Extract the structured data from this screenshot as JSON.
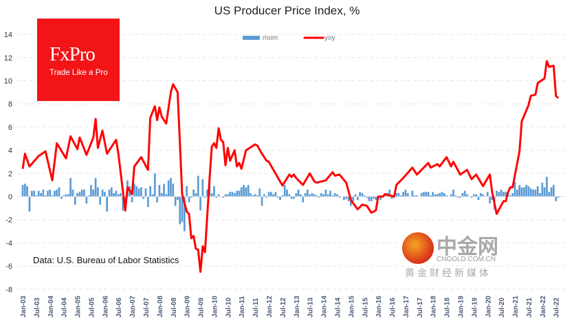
{
  "chart_data": {
    "type": "bar+line",
    "title": "US Producer Price Index, %",
    "source_note": "Data: U.S. Bureau of Labor Statistics",
    "ylim": [
      -8,
      14
    ],
    "yticks": [
      -8,
      -6,
      -4,
      -2,
      0,
      2,
      4,
      6,
      8,
      10,
      12,
      14
    ],
    "grid": true,
    "legend": "top-center",
    "start_month": "2003-01",
    "xtick_labels": [
      "Jan-03",
      "Jul-03",
      "Jan-04",
      "Jul-04",
      "Jan-05",
      "Jul-05",
      "Jan-06",
      "Jul-06",
      "Jan-07",
      "Jul-07",
      "Jan-08",
      "Jul-08",
      "Jan-09",
      "Jul-09",
      "Jan-10",
      "Jul-10",
      "Jan-11",
      "Jul-11",
      "Jan-12",
      "Jul-12",
      "Jan-13",
      "Jul-13",
      "Jan-14",
      "Jul-14",
      "Jan-15",
      "Jul-15",
      "Jan-16",
      "Jul-16",
      "Jan-17",
      "Jul-17",
      "Jan-18",
      "Jul-18",
      "Jan-19",
      "Jul-19",
      "Jan-20",
      "Jul-20",
      "Jan-21",
      "Jul-21",
      "Jan-22",
      "Jul-22"
    ],
    "series": [
      {
        "name": "mom",
        "type": "bar",
        "color": "#5b9bd5",
        "values": [
          1.0,
          1.1,
          0.9,
          -1.3,
          0.5,
          0.5,
          0.1,
          0.5,
          0.3,
          0.6,
          0.1,
          0.5,
          0.6,
          0.1,
          0.5,
          0.6,
          0.8,
          -0.2,
          0.1,
          0.2,
          0.2,
          1.6,
          0.6,
          -0.7,
          0.3,
          0.4,
          0.6,
          0.6,
          -0.6,
          0.1,
          1.0,
          0.6,
          1.6,
          0.8,
          -0.7,
          0.6,
          0.4,
          -1.3,
          0.6,
          0.8,
          0.3,
          0.5,
          0.2,
          0.3,
          -1.2,
          -1.3,
          1.4,
          0.9,
          -0.5,
          1.1,
          0.9,
          0.7,
          0.8,
          -0.2,
          0.7,
          -0.9,
          0.9,
          0.2,
          2.0,
          -0.5,
          1.0,
          0.3,
          1.1,
          0.2,
          1.4,
          1.6,
          1.1,
          -0.8,
          -0.3,
          -2.4,
          -2.2,
          -3.0,
          0.9,
          -0.5,
          -0.1,
          0.6,
          0.3,
          1.8,
          -1.2,
          1.5,
          -0.1,
          0.6,
          1.6,
          0.3,
          0.9,
          -0.1,
          0.2,
          0.0,
          -0.1,
          0.2,
          0.2,
          0.4,
          0.4,
          0.3,
          0.5,
          0.5,
          0.8,
          1.0,
          0.8,
          1.0,
          0.3,
          0.1,
          0.2,
          0.1,
          0.7,
          -0.8,
          0.2,
          -0.1,
          0.4,
          0.4,
          0.2,
          0.4,
          -0.1,
          -0.3,
          0.1,
          1.0,
          0.6,
          0.2,
          -0.2,
          -0.2,
          0.3,
          0.6,
          0.2,
          -0.5,
          0.3,
          0.6,
          0.2,
          0.3,
          0.2,
          0.1,
          -0.1,
          0.3,
          0.2,
          0.6,
          0.2,
          0.5,
          0.1,
          0.3,
          0.2,
          -0.1,
          0.0,
          -0.3,
          -0.2,
          -0.4,
          -0.8,
          -0.4,
          0.2,
          -0.3,
          0.4,
          0.3,
          0.1,
          -0.1,
          -0.4,
          -0.4,
          -0.2,
          -0.3,
          -0.1,
          -0.3,
          -0.1,
          0.3,
          0.3,
          0.6,
          -0.2,
          -0.1,
          0.3,
          0.3,
          0.1,
          0.4,
          0.6,
          0.3,
          0.0,
          0.5,
          0.1,
          0.1,
          0.0,
          0.3,
          0.4,
          0.4,
          0.4,
          0.1,
          0.4,
          0.2,
          0.2,
          0.3,
          0.4,
          0.3,
          0.1,
          0.0,
          0.2,
          0.6,
          0.1,
          -0.1,
          -0.1,
          0.3,
          0.5,
          0.2,
          0.0,
          -0.1,
          0.2,
          0.2,
          -0.3,
          0.3,
          0.2,
          0.0,
          0.4,
          -0.6,
          -0.3,
          -1.1,
          0.5,
          0.4,
          0.6,
          0.4,
          0.4,
          0.4,
          0.1,
          0.3,
          1.3,
          0.6,
          1.0,
          0.8,
          0.8,
          1.0,
          0.9,
          0.7,
          0.6,
          0.6,
          0.9,
          0.3,
          1.2,
          0.8,
          1.7,
          0.4,
          0.8,
          1.0,
          -0.4,
          -0.1
        ]
      },
      {
        "name": "yoy",
        "type": "line",
        "color": "#ff0000",
        "points": [
          [
            "2003-01",
            2.4
          ],
          [
            "2003-02",
            3.7
          ],
          [
            "2003-04",
            2.6
          ],
          [
            "2003-08",
            3.5
          ],
          [
            "2003-11",
            3.9
          ],
          [
            "2004-02",
            1.4
          ],
          [
            "2004-04",
            4.6
          ],
          [
            "2004-08",
            3.3
          ],
          [
            "2004-10",
            5.2
          ],
          [
            "2005-01",
            4.1
          ],
          [
            "2005-02",
            5.1
          ],
          [
            "2005-05",
            3.6
          ],
          [
            "2005-08",
            5.1
          ],
          [
            "2005-09",
            6.7
          ],
          [
            "2005-10",
            4.2
          ],
          [
            "2005-12",
            5.7
          ],
          [
            "2006-02",
            3.7
          ],
          [
            "2006-06",
            4.9
          ],
          [
            "2006-07",
            3.7
          ],
          [
            "2006-10",
            -1.2
          ],
          [
            "2006-11",
            0.8
          ],
          [
            "2007-01",
            0.2
          ],
          [
            "2007-02",
            2.6
          ],
          [
            "2007-05",
            3.4
          ],
          [
            "2007-08",
            2.3
          ],
          [
            "2007-09",
            6.8
          ],
          [
            "2007-11",
            7.8
          ],
          [
            "2007-12",
            6.6
          ],
          [
            "2008-01",
            7.7
          ],
          [
            "2008-02",
            6.9
          ],
          [
            "2008-04",
            6.3
          ],
          [
            "2008-06",
            9.0
          ],
          [
            "2008-07",
            9.7
          ],
          [
            "2008-09",
            9.0
          ],
          [
            "2008-11",
            0.2
          ],
          [
            "2009-01",
            -1.3
          ],
          [
            "2009-02",
            -1.5
          ],
          [
            "2009-03",
            -3.6
          ],
          [
            "2009-04",
            -3.4
          ],
          [
            "2009-05",
            -4.5
          ],
          [
            "2009-06",
            -4.6
          ],
          [
            "2009-07",
            -6.5
          ],
          [
            "2009-08",
            -4.3
          ],
          [
            "2009-09",
            -4.8
          ],
          [
            "2009-11",
            1.5
          ],
          [
            "2009-12",
            4.3
          ],
          [
            "2010-01",
            4.6
          ],
          [
            "2010-02",
            4.2
          ],
          [
            "2010-03",
            5.9
          ],
          [
            "2010-04",
            4.9
          ],
          [
            "2010-05",
            4.7
          ],
          [
            "2010-06",
            2.7
          ],
          [
            "2010-07",
            4.2
          ],
          [
            "2010-08",
            3.1
          ],
          [
            "2010-10",
            4.0
          ],
          [
            "2010-11",
            2.6
          ],
          [
            "2010-12",
            2.9
          ],
          [
            "2011-01",
            2.4
          ],
          [
            "2011-03",
            4.0
          ],
          [
            "2011-07",
            4.5
          ],
          [
            "2011-08",
            4.4
          ],
          [
            "2011-10",
            3.7
          ],
          [
            "2011-12",
            3.1
          ],
          [
            "2012-01",
            3.0
          ],
          [
            "2012-07",
            0.95
          ],
          [
            "2012-10",
            1.9
          ],
          [
            "2012-11",
            1.7
          ],
          [
            "2012-12",
            1.9
          ],
          [
            "2013-01",
            1.6
          ],
          [
            "2013-04",
            1.0
          ],
          [
            "2013-07",
            2.0
          ],
          [
            "2013-09",
            1.3
          ],
          [
            "2013-10",
            1.2
          ],
          [
            "2014-02",
            1.4
          ],
          [
            "2014-05",
            2.1
          ],
          [
            "2014-06",
            1.8
          ],
          [
            "2014-08",
            1.9
          ],
          [
            "2014-11",
            1.2
          ],
          [
            "2015-01",
            -0.3
          ],
          [
            "2015-04",
            -1.1
          ],
          [
            "2015-06",
            -0.7
          ],
          [
            "2015-08",
            -0.8
          ],
          [
            "2015-10",
            -1.4
          ],
          [
            "2015-12",
            -1.2
          ],
          [
            "2016-01",
            0.0
          ],
          [
            "2016-03",
            0.0
          ],
          [
            "2016-04",
            0.2
          ],
          [
            "2016-08",
            0.0
          ],
          [
            "2016-09",
            1.0
          ],
          [
            "2016-12",
            1.6
          ],
          [
            "2017-04",
            2.5
          ],
          [
            "2017-06",
            1.9
          ],
          [
            "2017-11",
            2.9
          ],
          [
            "2017-12",
            2.5
          ],
          [
            "2018-03",
            2.8
          ],
          [
            "2018-04",
            2.6
          ],
          [
            "2018-07",
            3.4
          ],
          [
            "2018-09",
            2.6
          ],
          [
            "2018-10",
            3.0
          ],
          [
            "2019-01",
            1.9
          ],
          [
            "2019-04",
            2.3
          ],
          [
            "2019-06",
            1.5
          ],
          [
            "2019-08",
            1.9
          ],
          [
            "2019-11",
            0.9
          ],
          [
            "2020-02",
            1.9
          ],
          [
            "2020-03",
            0.4
          ],
          [
            "2020-05",
            -1.5
          ],
          [
            "2020-08",
            -0.4
          ],
          [
            "2020-09",
            -0.4
          ],
          [
            "2020-10",
            0.4
          ],
          [
            "2020-11",
            0.8
          ],
          [
            "2020-12",
            0.8
          ],
          [
            "2021-03",
            3.9
          ],
          [
            "2021-04",
            6.5
          ],
          [
            "2021-07",
            7.9
          ],
          [
            "2021-08",
            8.7
          ],
          [
            "2021-10",
            8.8
          ],
          [
            "2021-11",
            9.8
          ],
          [
            "2022-02",
            10.2
          ],
          [
            "2022-03",
            11.7
          ],
          [
            "2022-04",
            11.2
          ],
          [
            "2022-06",
            11.3
          ],
          [
            "2022-07",
            8.7
          ],
          [
            "2022-08",
            8.5
          ]
        ]
      }
    ]
  },
  "logo": {
    "brand": "FxPro",
    "tagline": "Trade Like a Pro"
  },
  "watermark": {
    "name": "中金网",
    "url": "CNGOLD.COM.CN",
    "subtitle": "黄金财经新媒体"
  }
}
